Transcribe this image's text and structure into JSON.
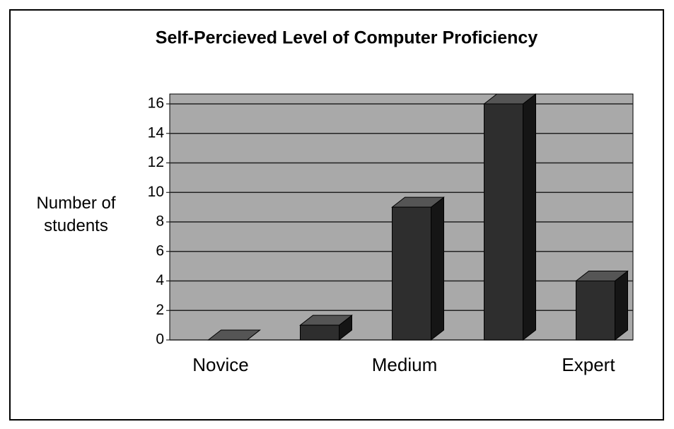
{
  "chart_data": {
    "type": "bar3d",
    "title": "Self-Percieved Level of Computer Proficiency",
    "y_label": "Number of students",
    "categories": [
      "Novice",
      null,
      "Medium",
      null,
      "Expert"
    ],
    "values": [
      0,
      1,
      9,
      16,
      4
    ],
    "color": "#2e2e2e",
    "ylim": [
      0,
      16
    ],
    "yticks": [
      0,
      2,
      4,
      6,
      8,
      10,
      12,
      14,
      16
    ],
    "grid": true
  }
}
